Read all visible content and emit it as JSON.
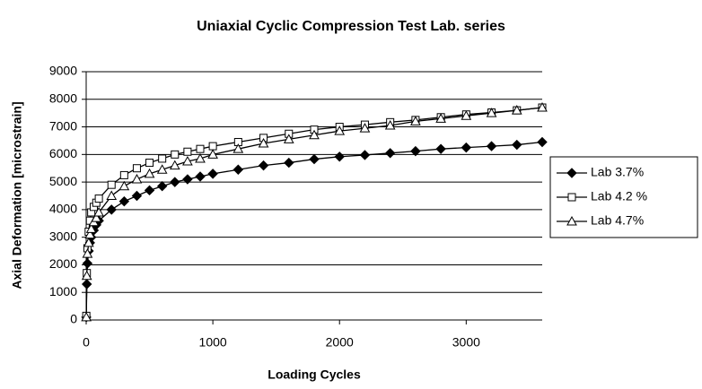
{
  "chart_data": {
    "type": "line",
    "title": "Uniaxial Cyclic Compression Test Lab. series",
    "x_label": "Loading Cycles",
    "y_label": "Axial Deformation [microstrain]",
    "x": [
      1,
      5,
      10,
      20,
      30,
      40,
      60,
      80,
      100,
      200,
      300,
      400,
      500,
      600,
      700,
      800,
      900,
      1000,
      1200,
      1400,
      1600,
      1800,
      2000,
      2200,
      2400,
      2600,
      2800,
      3000,
      3200,
      3400,
      3600
    ],
    "series": [
      {
        "name": "Lab 3.7%",
        "color": "#000000",
        "marker": "diamond",
        "values": [
          100,
          1300,
          2050,
          2500,
          2800,
          3000,
          3250,
          3450,
          3600,
          4000,
          4300,
          4500,
          4700,
          4850,
          5000,
          5100,
          5200,
          5300,
          5450,
          5600,
          5700,
          5830,
          5920,
          5980,
          6050,
          6120,
          6200,
          6250,
          6300,
          6350,
          6450
        ]
      },
      {
        "name": "Lab 4.2 %",
        "color": "#000000",
        "marker": "square",
        "values": [
          150,
          1700,
          2600,
          3200,
          3600,
          3900,
          4100,
          4250,
          4400,
          4900,
          5250,
          5500,
          5700,
          5850,
          6000,
          6100,
          6200,
          6300,
          6450,
          6600,
          6750,
          6900,
          7000,
          7080,
          7170,
          7250,
          7350,
          7450,
          7520,
          7600,
          7700
        ]
      },
      {
        "name": "Lab 4.7%",
        "color": "#000000",
        "marker": "triangle",
        "values": [
          100,
          1600,
          2400,
          2800,
          3100,
          3300,
          3550,
          3700,
          3900,
          4500,
          4850,
          5100,
          5300,
          5450,
          5600,
          5750,
          5850,
          6000,
          6200,
          6400,
          6550,
          6700,
          6850,
          6950,
          7050,
          7200,
          7300,
          7400,
          7500,
          7600,
          7700
        ]
      }
    ],
    "xlim": [
      0,
      3600
    ],
    "xticks": [
      0,
      1000,
      2000,
      3000
    ],
    "ylim": [
      0,
      9000
    ],
    "yticks": [
      0,
      1000,
      2000,
      3000,
      4000,
      5000,
      6000,
      7000,
      8000,
      9000
    ],
    "grid": true,
    "legend": "right"
  }
}
